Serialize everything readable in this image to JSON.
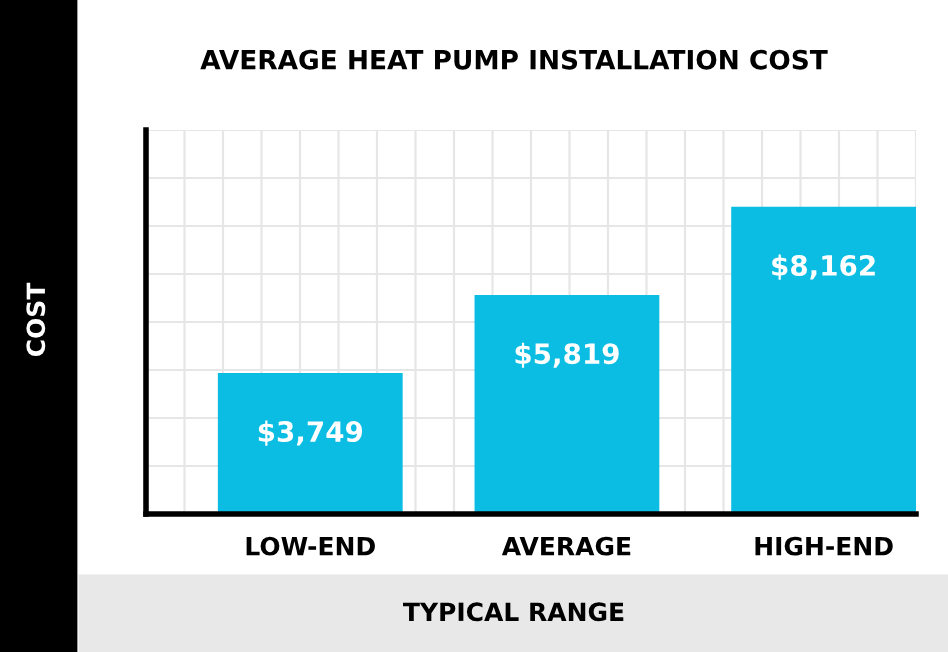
{
  "chart_data": {
    "type": "bar",
    "title": "AVERAGE HEAT PUMP INSTALLATION COST",
    "xlabel": "TYPICAL RANGE",
    "ylabel": "COST",
    "categories": [
      "LOW-END",
      "AVERAGE",
      "HIGH-END"
    ],
    "values": [
      3749,
      5819,
      8162
    ],
    "value_labels": [
      "$3,749",
      "$5,819",
      "$8,162"
    ],
    "color": "#0bbde3",
    "grid": true,
    "tick_labels": "x"
  }
}
